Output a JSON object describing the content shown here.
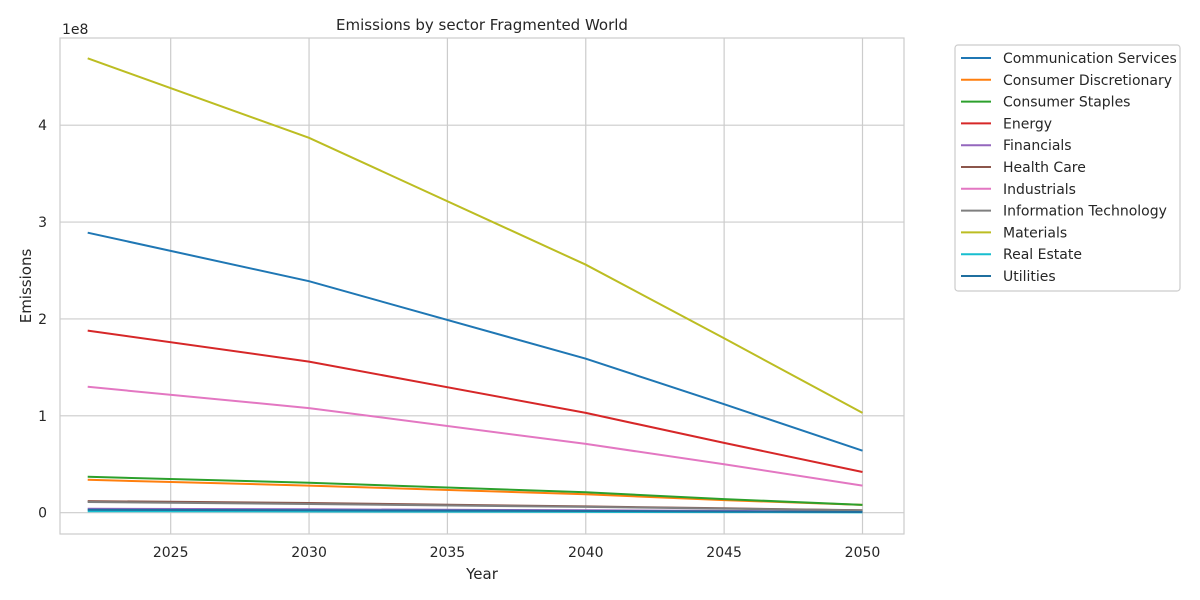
{
  "chart_data": {
    "type": "line",
    "title": "Emissions by sector Fragmented World",
    "xlabel": "Year",
    "ylabel": "Emissions",
    "y_offset_label": "1e8",
    "xlim": [
      2021,
      2051.5
    ],
    "ylim": [
      -0.22,
      4.9
    ],
    "x_ticks": [
      2025,
      2030,
      2035,
      2040,
      2045,
      2050
    ],
    "y_ticks": [
      0,
      1,
      2,
      3,
      4
    ],
    "grid": true,
    "legend_position": "outside-top-right",
    "x": [
      2022,
      2030,
      2040,
      2045,
      2050
    ],
    "series": [
      {
        "name": "Communication Services",
        "color": "#1f77b4",
        "values": [
          2.89,
          2.39,
          1.59,
          1.12,
          0.64
        ]
      },
      {
        "name": "Consumer Discretionary",
        "color": "#ff7f0e",
        "values": [
          0.34,
          0.28,
          0.19,
          0.13,
          0.08
        ]
      },
      {
        "name": "Consumer Staples",
        "color": "#2ca02c",
        "values": [
          0.37,
          0.31,
          0.21,
          0.14,
          0.08
        ]
      },
      {
        "name": "Energy",
        "color": "#d62728",
        "values": [
          1.88,
          1.56,
          1.03,
          0.72,
          0.42
        ]
      },
      {
        "name": "Financials",
        "color": "#9467bd",
        "values": [
          0.04,
          0.035,
          0.025,
          0.018,
          0.01
        ]
      },
      {
        "name": "Health Care",
        "color": "#8c564b",
        "values": [
          0.12,
          0.1,
          0.065,
          0.045,
          0.025
        ]
      },
      {
        "name": "Industrials",
        "color": "#e377c2",
        "values": [
          1.3,
          1.08,
          0.71,
          0.5,
          0.28
        ]
      },
      {
        "name": "Information Technology",
        "color": "#7f7f7f",
        "values": [
          0.11,
          0.09,
          0.06,
          0.042,
          0.024
        ]
      },
      {
        "name": "Materials",
        "color": "#bcbd22",
        "values": [
          4.69,
          3.87,
          2.56,
          1.8,
          1.03
        ]
      },
      {
        "name": "Real Estate",
        "color": "#17becf",
        "values": [
          0.015,
          0.012,
          0.008,
          0.006,
          0.003
        ]
      },
      {
        "name": "Utilities",
        "color": "#1f6f9f",
        "values": [
          0.03,
          0.025,
          0.017,
          0.012,
          0.007
        ]
      }
    ]
  }
}
